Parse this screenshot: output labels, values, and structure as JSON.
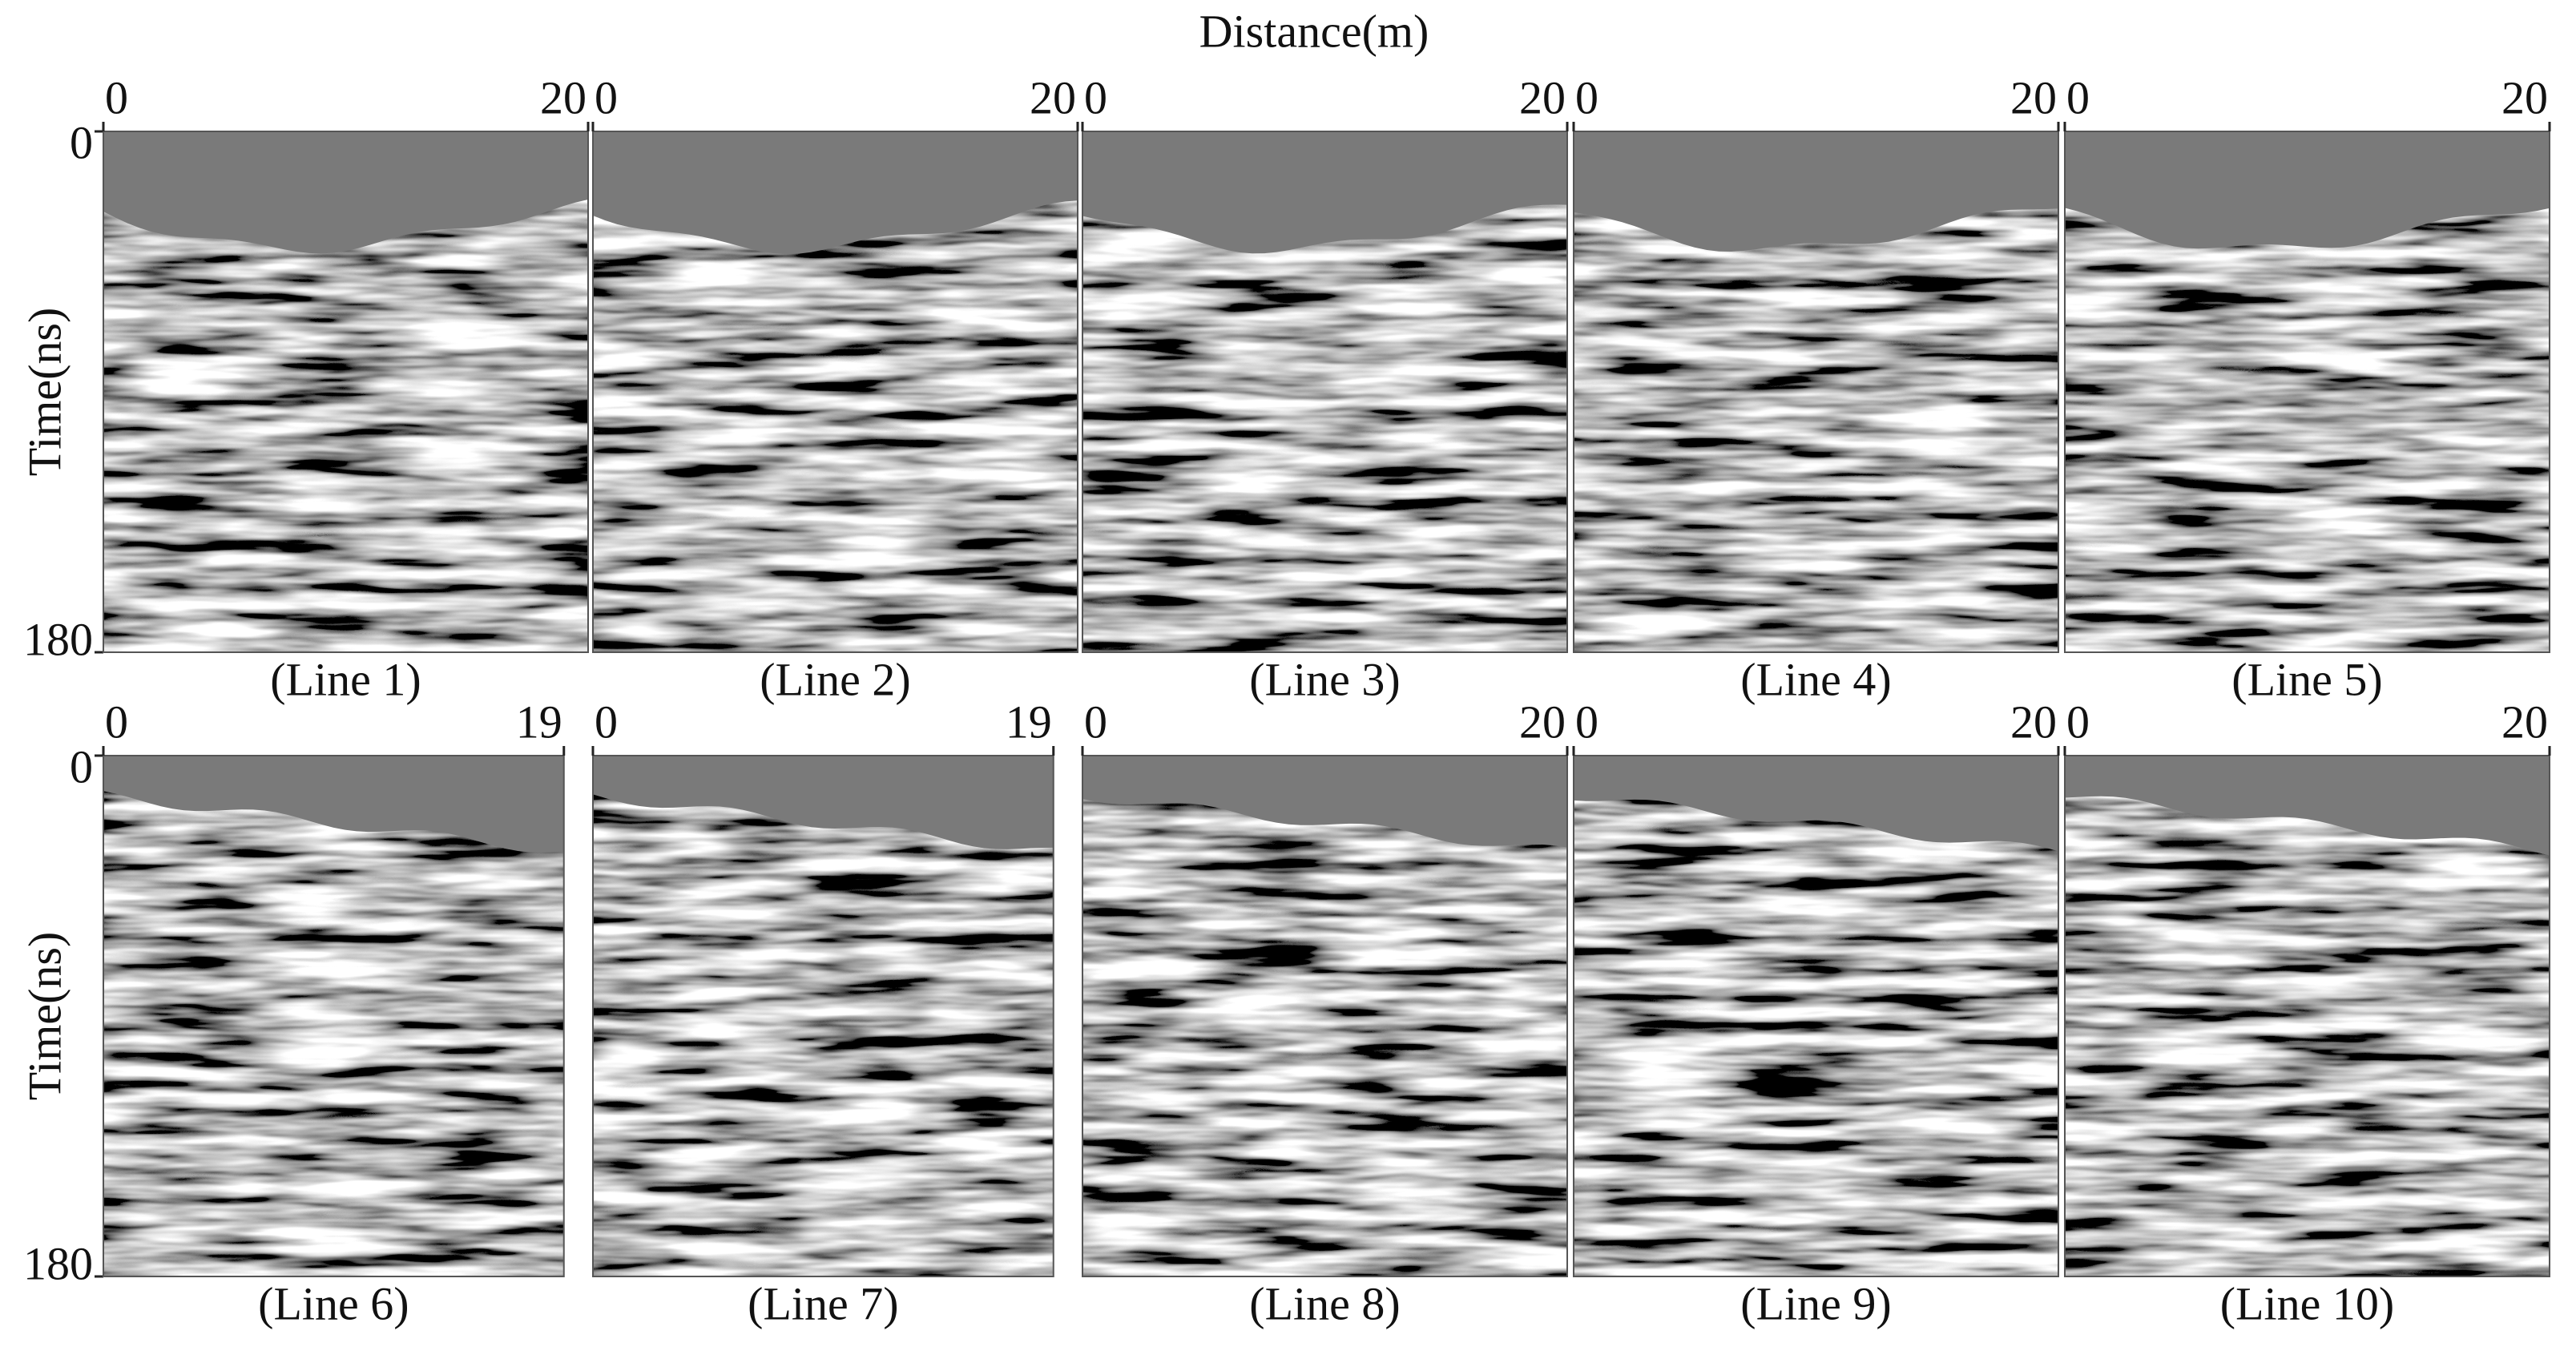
{
  "figure": {
    "x_axis_label": "Distance(m)",
    "rows": [
      {
        "y_axis_label": "Time(ns)",
        "yticks": [
          0,
          180
        ],
        "panels": [
          {
            "label": "(Line 1)",
            "xticks": [
              0,
              20
            ]
          },
          {
            "label": "(Line 2)",
            "xticks": [
              0,
              20
            ]
          },
          {
            "label": "(Line 3)",
            "xticks": [
              0,
              20
            ]
          },
          {
            "label": "(Line 4)",
            "xticks": [
              0,
              20
            ]
          },
          {
            "label": "(Line 5)",
            "xticks": [
              0,
              20
            ]
          }
        ]
      },
      {
        "y_axis_label": "Time(ns)",
        "yticks": [
          0,
          180
        ],
        "panels": [
          {
            "label": "(Line 6)",
            "xticks": [
              0,
              19
            ]
          },
          {
            "label": "(Line 7)",
            "xticks": [
              0,
              19
            ]
          },
          {
            "label": "(Line 8)",
            "xticks": [
              0,
              20
            ]
          },
          {
            "label": "(Line 9)",
            "xticks": [
              0,
              20
            ]
          },
          {
            "label": "(Line 10)",
            "xticks": [
              0,
              20
            ]
          }
        ]
      }
    ]
  }
}
